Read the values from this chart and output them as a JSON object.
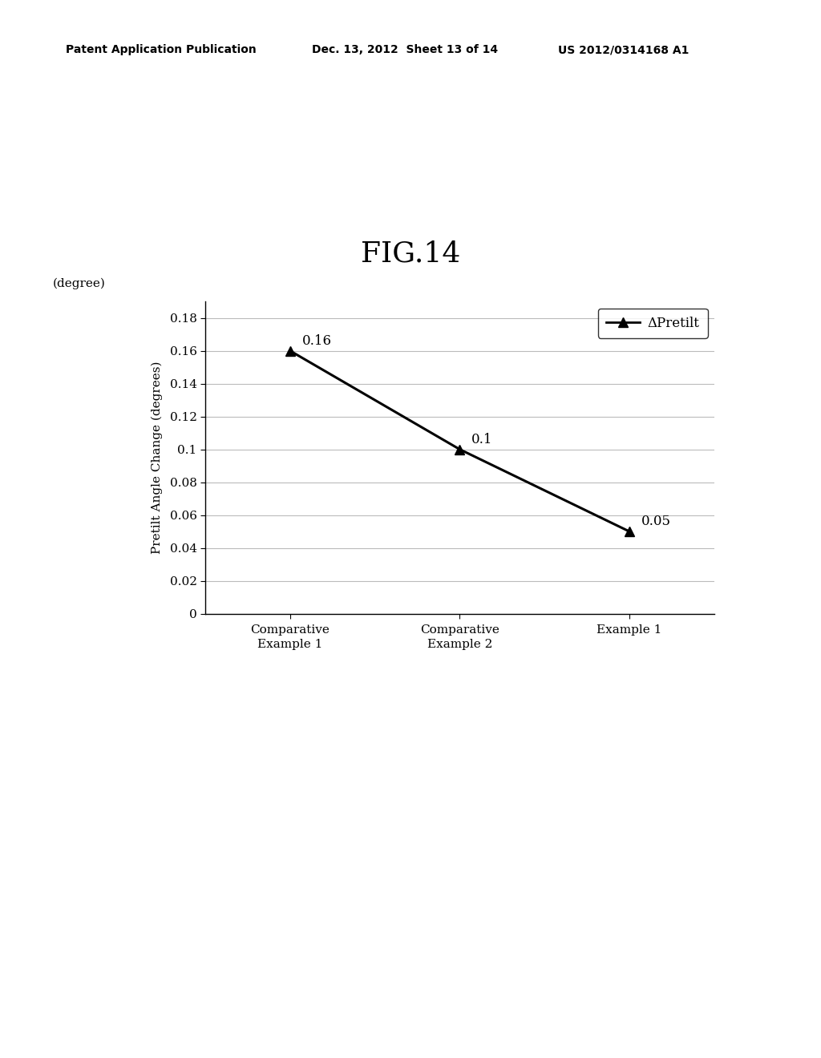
{
  "title": "FIG.14",
  "header_left": "Patent Application Publication",
  "header_center": "Dec. 13, 2012  Sheet 13 of 14",
  "header_right": "US 2012/0314168 A1",
  "ylabel": "Pretilt Angle Change (degrees)",
  "ylabel_top": "(degree)",
  "xlabel_labels": [
    "Comparative\nExample 1",
    "Comparative\nExample 2",
    "Example 1"
  ],
  "x_values": [
    0,
    1,
    2
  ],
  "y_values": [
    0.16,
    0.1,
    0.05
  ],
  "y_annotations": [
    "0.16",
    "0.1",
    "0.05"
  ],
  "ylim": [
    0,
    0.19
  ],
  "yticks": [
    0,
    0.02,
    0.04,
    0.06,
    0.08,
    0.1,
    0.12,
    0.14,
    0.16,
    0.18
  ],
  "ytick_labels": [
    "0",
    "0.02",
    "0.04",
    "0.06",
    "0.08",
    "0.1",
    "0.12",
    "0.14",
    "0.16",
    "0.18"
  ],
  "legend_label": "ΔPretilt",
  "line_color": "#000000",
  "marker": "^",
  "marker_size": 9,
  "marker_color": "#000000",
  "grid_color": "#bbbbbb",
  "background_color": "#ffffff",
  "title_fontsize": 26,
  "header_fontsize": 10,
  "axis_label_fontsize": 11,
  "tick_fontsize": 11,
  "annotation_fontsize": 12,
  "legend_fontsize": 12
}
